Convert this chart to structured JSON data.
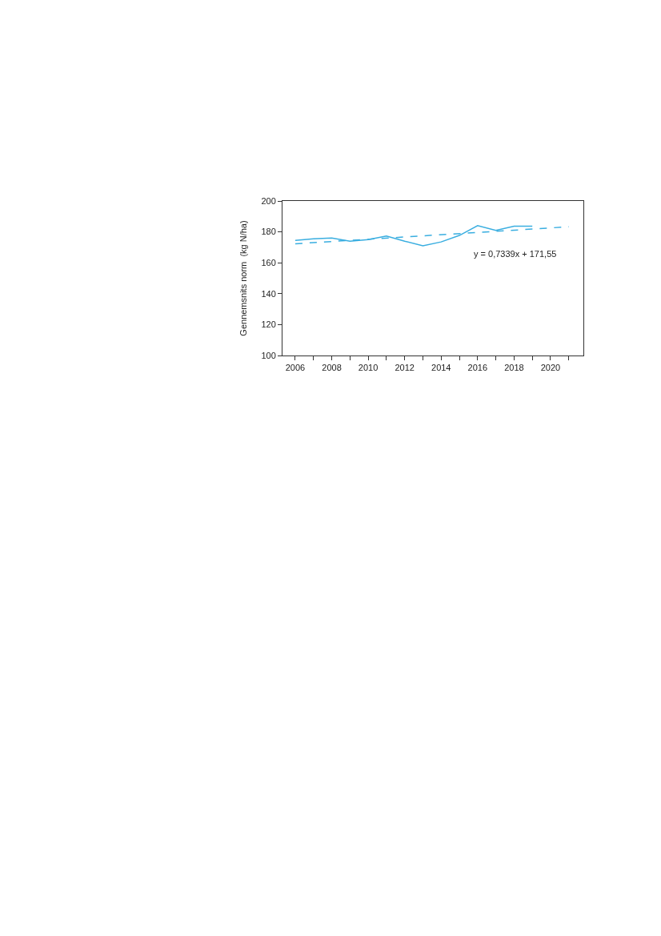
{
  "chart_data": {
    "type": "line",
    "ylabel": "Gennemsnits norm  (kg N/ha)",
    "x": [
      2006,
      2007,
      2008,
      2009,
      2010,
      2011,
      2012,
      2013,
      2014,
      2015,
      2016,
      2017,
      2018,
      2019
    ],
    "series": [
      {
        "color": "#3aaee0",
        "line_style": "solid",
        "values": [
          174.5,
          175.5,
          176,
          174,
          175,
          177.3,
          174,
          171,
          173.5,
          177.7,
          184,
          181,
          183.7,
          183.7
        ]
      },
      {
        "type": "line",
        "color": "#3aaee0",
        "line_style": "dashed",
        "x": [
          2006,
          2021
        ],
        "values": [
          172.3,
          183.3
        ]
      }
    ],
    "annotations": [
      "y = 0,7339x + 171,55"
    ],
    "xlim": [
      2005.3,
      2021.8
    ],
    "xticks": [
      2006,
      {
        "value": 2007,
        "label": null
      },
      2008,
      {
        "value": 2009,
        "label": null
      },
      2010,
      {
        "value": 2011,
        "label": null
      },
      2012,
      {
        "value": 2013,
        "label": null
      },
      2014,
      {
        "value": 2015,
        "label": null
      },
      2016,
      {
        "value": 2017,
        "label": null
      },
      2018,
      {
        "value": 2019,
        "label": null
      },
      2020,
      {
        "value": 2021,
        "label": null
      }
    ],
    "ylim": [
      100,
      200
    ],
    "yticks": [
      100,
      120,
      140,
      160,
      180,
      200
    ],
    "marker": "none"
  }
}
